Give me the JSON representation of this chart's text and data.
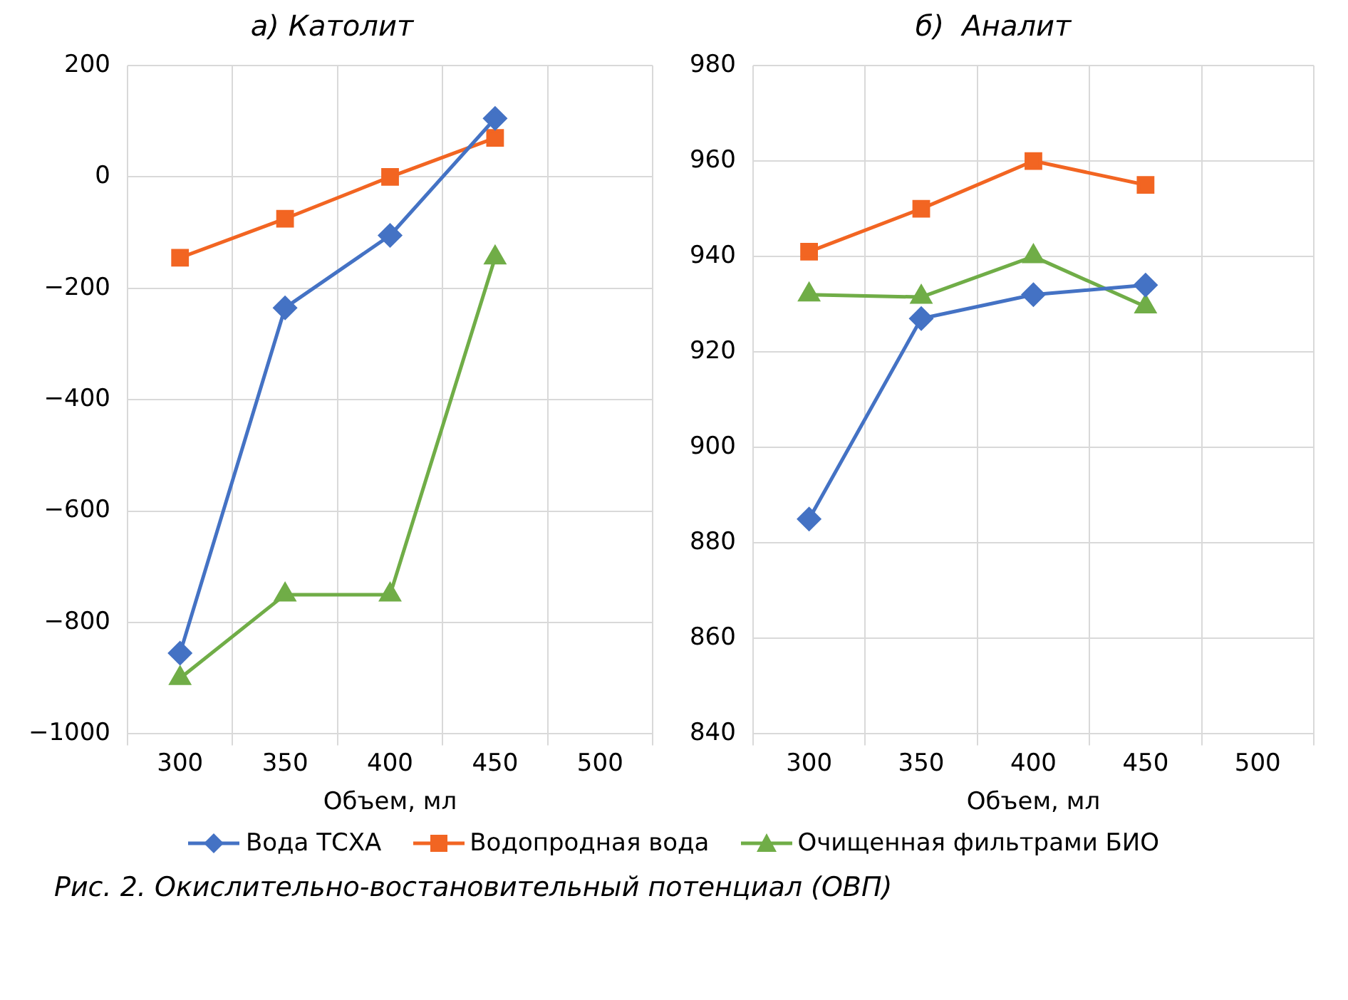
{
  "chart_data": [
    {
      "type": "line",
      "title": "а) Католит",
      "xlabel": "Объем, мл",
      "categories": [
        "300",
        "350",
        "400",
        "450",
        "500"
      ],
      "series": [
        {
          "name": "Вода ТСХА",
          "color": "#4472c4",
          "marker": "diamond",
          "values": [
            -855,
            -235,
            -105,
            105,
            null
          ]
        },
        {
          "name": "Водопродная вода",
          "color": "#f26522",
          "marker": "square",
          "values": [
            -145,
            -75,
            0,
            70,
            null
          ]
        },
        {
          "name": "Очищенная фильтрами БИО",
          "color": "#70ad47",
          "marker": "triangle",
          "values": [
            -900,
            -750,
            -750,
            -145,
            null
          ]
        }
      ],
      "ylim": [
        -1000,
        200
      ],
      "yticks": [
        {
          "value": -1000,
          "label": "−1000"
        },
        {
          "value": -800,
          "label": "−800"
        },
        {
          "value": -600,
          "label": "−600"
        },
        {
          "value": -400,
          "label": "−400"
        },
        {
          "value": -200,
          "label": "−200"
        },
        0,
        200
      ],
      "grid": true,
      "legend": "bottom",
      "line_style": "solid",
      "annotations": [
        "Рис. 2. Окислительно-востановительный потенциал (ОВП)"
      ]
    },
    {
      "type": "line",
      "title": "б)  Аналит",
      "xlabel": "Объем, мл",
      "categories": [
        "300",
        "350",
        "400",
        "450",
        "500"
      ],
      "series": [
        {
          "color": "#4472c4",
          "marker": "diamond",
          "values": [
            885,
            927,
            932,
            934,
            null
          ]
        },
        {
          "color": "#f26522",
          "marker": "square",
          "values": [
            941,
            950,
            960,
            955,
            null
          ]
        },
        {
          "color": "#70ad47",
          "marker": "triangle",
          "values": [
            932,
            931.5,
            940,
            929.5,
            null
          ]
        }
      ],
      "ylim": [
        840,
        980
      ],
      "yticks": [
        840,
        860,
        880,
        900,
        920,
        940,
        960,
        980
      ],
      "grid": true,
      "line_style": "solid"
    }
  ]
}
